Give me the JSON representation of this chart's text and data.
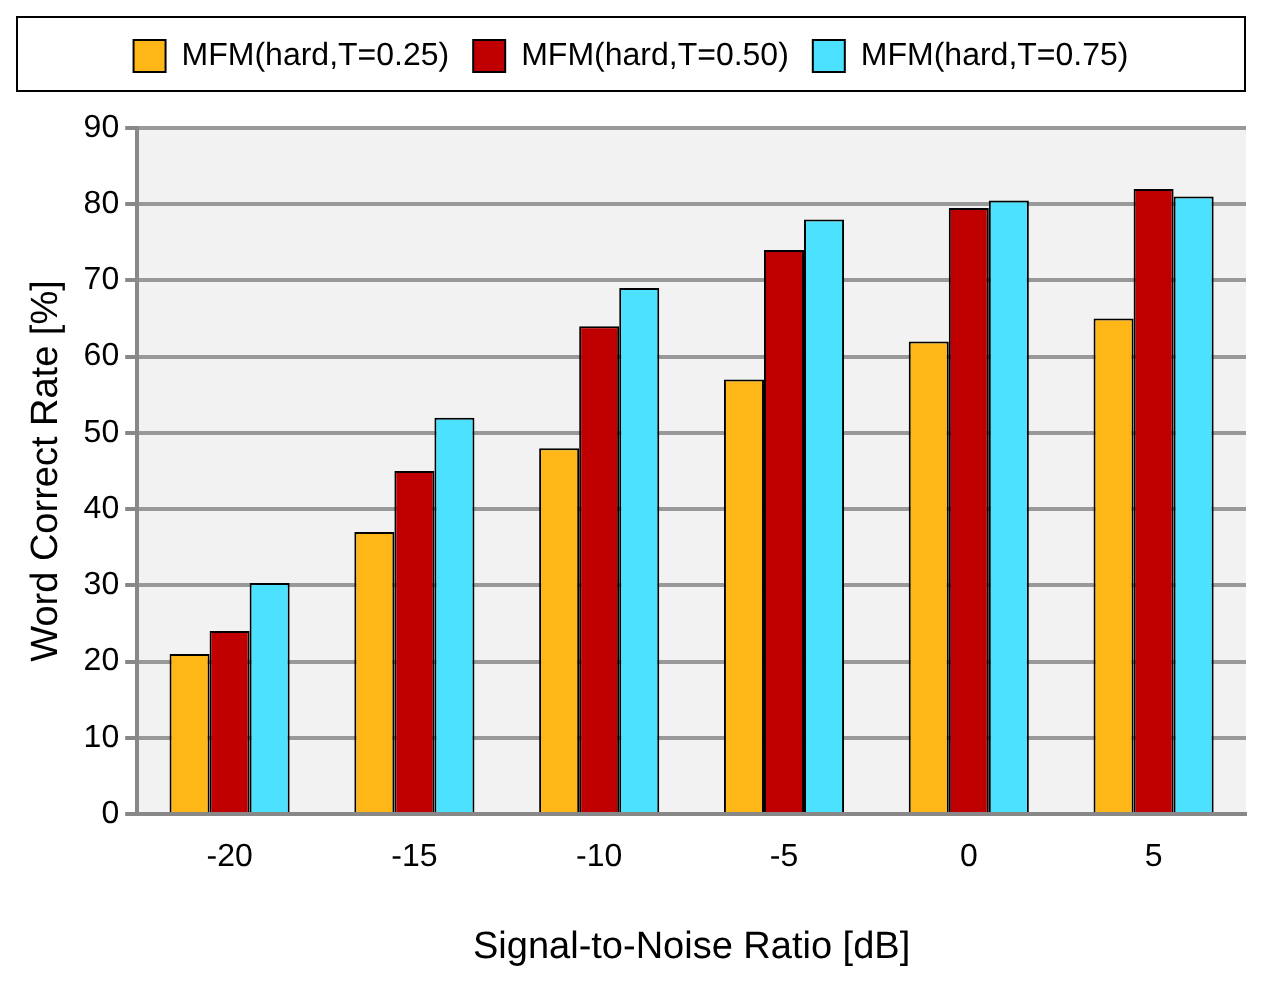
{
  "chart_data": {
    "type": "bar",
    "xlabel": "Signal-to-Noise Ratio [dB]",
    "ylabel": "Word Correct Rate [%]",
    "categories": [
      "-20",
      "-15",
      "-10",
      "-5",
      "0",
      "5"
    ],
    "series": [
      {
        "name": "MFM(hard,T=0.25)",
        "color": "#ffb718",
        "values": [
          21,
          37,
          48,
          57,
          62,
          65
        ]
      },
      {
        "name": "MFM(hard,T=0.50)",
        "color": "#c00000",
        "values": [
          24,
          45,
          64,
          74,
          79.5,
          82
        ]
      },
      {
        "name": "MFM(hard,T=0.75)",
        "color": "#4be1ff",
        "values": [
          30.3,
          52,
          69,
          78,
          80.5,
          81
        ]
      }
    ],
    "ylim": [
      0,
      90
    ],
    "yticks": [
      0,
      10,
      20,
      30,
      40,
      50,
      60,
      70,
      80,
      90
    ],
    "grid": "y",
    "legend": "top"
  }
}
